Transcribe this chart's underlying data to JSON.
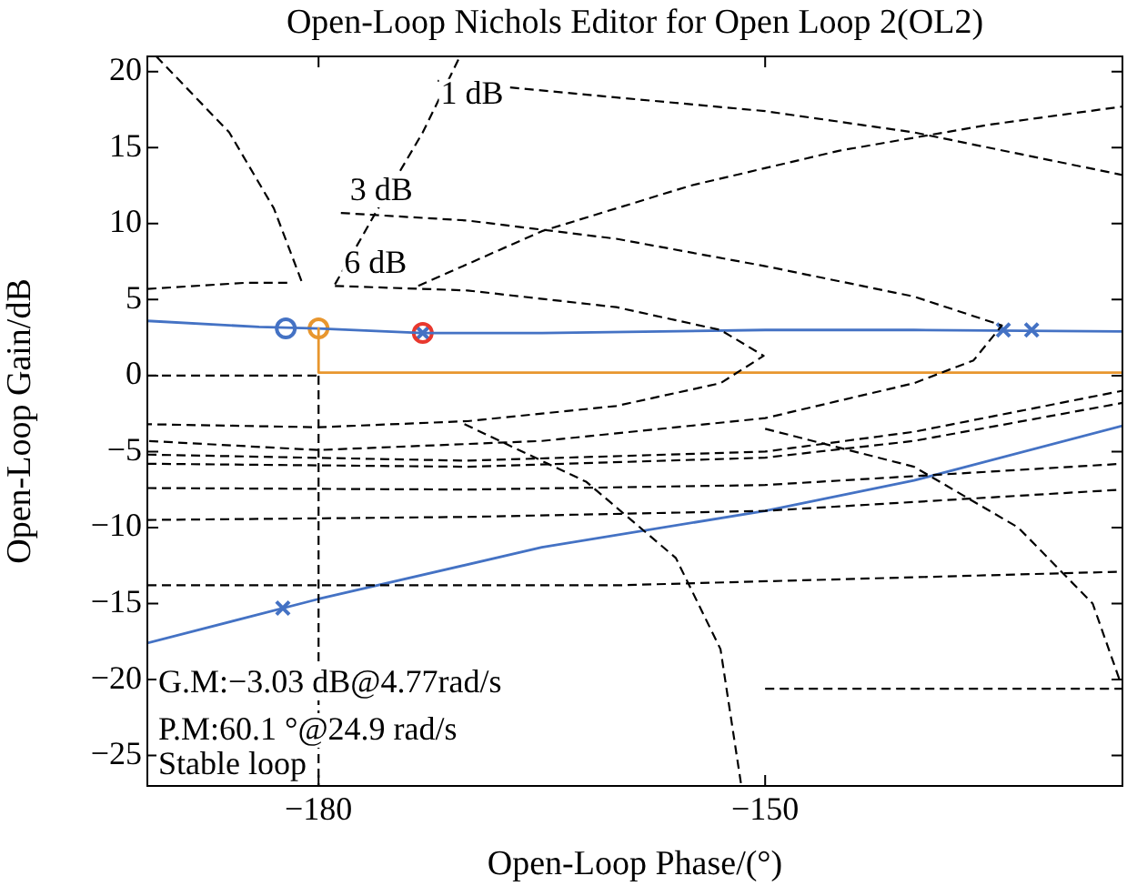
{
  "chart_data": {
    "type": "line",
    "title": "Open-Loop Nichols Editor for Open Loop 2(OL2)",
    "xlabel": "Open-Loop Phase/(°)",
    "ylabel": "Open-Loop Gain/dB",
    "xlim": [
      -191.5,
      -126
    ],
    "ylim": [
      -27,
      21
    ],
    "xticks": [
      -180,
      -150
    ],
    "yticks": [
      -25,
      -20,
      -15,
      -10,
      -5,
      0,
      5,
      10,
      15,
      20
    ],
    "grid": false,
    "legend": false,
    "marker": "none",
    "line_style": "solid",
    "annotations": [
      {
        "text": "1 dB",
        "x": -172.4,
        "y": 17
      },
      {
        "text": "3 dB",
        "x": -178.5,
        "y": 10.7
      },
      {
        "text": "6 dB",
        "x": -178.9,
        "y": 5.9
      },
      "G.M:−3.03 dB@4.77rad/s",
      "P.M:60.1 °@24.9 rad/s",
      "Stable loop"
    ],
    "series": [
      {
        "type": "line",
        "color": "#000000",
        "line_style": "dashed",
        "x": [
          -178.9,
          -170,
          -160,
          -153,
          -150.1,
          -153,
          -160,
          -170,
          -180,
          -191.5
        ],
        "values": [
          5.9,
          5.6,
          4.5,
          3,
          1.3,
          -0.5,
          -2,
          -3,
          -3.4,
          -3.2
        ]
      },
      {
        "type": "line",
        "color": "#000000",
        "line_style": "dashed",
        "x": [
          -178.5,
          -170,
          -160,
          -150,
          -140,
          -134.1,
          -136,
          -140,
          -150,
          -165,
          -180,
          -191.5
        ],
        "values": [
          10.7,
          10.2,
          9,
          7.2,
          5.2,
          3.3,
          1,
          -0.5,
          -2.8,
          -4.3,
          -4.9,
          -4.3
        ]
      },
      {
        "type": "line",
        "color": "#000000",
        "line_style": "dashed",
        "x": [
          -178.9,
          -176,
          -173,
          -170.5
        ],
        "values": [
          6,
          11,
          16,
          21
        ]
      },
      {
        "type": "line",
        "color": "#000000",
        "line_style": "dashed",
        "x": [
          -173.3,
          -165,
          -155,
          -145,
          -135,
          -126
        ],
        "values": [
          5.9,
          9.5,
          12.5,
          14.8,
          16.5,
          17.7
        ]
      },
      {
        "type": "line",
        "color": "#000000",
        "line_style": "dashed",
        "x": [
          -190.9,
          -186,
          -183,
          -181.1
        ],
        "values": [
          21,
          16,
          11,
          6.1
        ]
      },
      {
        "type": "line",
        "color": "#000000",
        "line_style": "dashed",
        "x": [
          -191.5,
          -185,
          -182
        ],
        "values": [
          5.7,
          6.1,
          6.1
        ]
      },
      {
        "type": "line",
        "color": "#000000",
        "line_style": "dashed",
        "x": [
          -172,
          -160,
          -150,
          -140,
          -126
        ],
        "values": [
          19.4,
          18.3,
          17.4,
          16,
          13.2
        ]
      },
      {
        "type": "line",
        "color": "#000000",
        "line_style": "dashed",
        "x": [
          -191.5,
          -170,
          -150,
          -140,
          -126
        ],
        "values": [
          -5.2,
          -5.6,
          -5,
          -3.7,
          -1
        ]
      },
      {
        "type": "line",
        "color": "#000000",
        "line_style": "dashed",
        "x": [
          -191.5,
          -170,
          -150,
          -140,
          -126
        ],
        "values": [
          -5.8,
          -6,
          -5.4,
          -4.3,
          -1.8
        ]
      },
      {
        "type": "line",
        "color": "#000000",
        "line_style": "dashed",
        "x": [
          -191.5,
          -170,
          -150,
          -126
        ],
        "values": [
          -7.4,
          -7.5,
          -7.2,
          -5.8
        ]
      },
      {
        "type": "line",
        "color": "#000000",
        "line_style": "dashed",
        "x": [
          -191.5,
          -170,
          -150,
          -126
        ],
        "values": [
          -9.5,
          -9.3,
          -8.9,
          -7.5
        ]
      },
      {
        "type": "line",
        "color": "#000000",
        "line_style": "dashed",
        "x": [
          -191.5,
          -160,
          -126
        ],
        "values": [
          -13.8,
          -13.8,
          -12.9
        ]
      },
      {
        "type": "line",
        "color": "#000000",
        "line_style": "dashed",
        "x": [
          -150,
          -126
        ],
        "values": [
          -20.6,
          -20.6
        ]
      },
      {
        "type": "line",
        "color": "#000000",
        "line_style": "dashed",
        "x": [
          -170.2,
          -162,
          -156,
          -153,
          -151.6
        ],
        "values": [
          -3.2,
          -7,
          -12,
          -18,
          -27
        ]
      },
      {
        "type": "line",
        "color": "#000000",
        "line_style": "dashed",
        "x": [
          -150,
          -140,
          -133,
          -128,
          -126.2
        ],
        "values": [
          -3.5,
          -6,
          -10,
          -15,
          -20
        ]
      },
      {
        "type": "line",
        "color": "#000000",
        "line_style": "dashed",
        "x": [
          -180,
          -180
        ],
        "values": [
          0,
          -27
        ]
      },
      {
        "type": "line",
        "color": "#000000",
        "line_style": "dashed",
        "x": [
          -191.5,
          -180
        ],
        "values": [
          0,
          0
        ]
      },
      {
        "type": "line",
        "color": "#e8962e",
        "x": [
          -180,
          -180,
          -126
        ],
        "values": [
          3.1,
          0.2,
          0.2
        ]
      },
      {
        "type": "line",
        "color": "#4472c4",
        "x": [
          -191.5,
          -184,
          -180,
          -173,
          -165,
          -150,
          -140,
          -126
        ],
        "values": [
          3.6,
          3.2,
          3.1,
          2.8,
          2.8,
          3,
          3,
          2.9
        ]
      },
      {
        "type": "line",
        "color": "#4472c4",
        "x": [
          -191.5,
          -180,
          -165,
          -150,
          -140,
          -126
        ],
        "values": [
          -17.6,
          -14.7,
          -11.3,
          -8.9,
          -6.9,
          -3.3
        ]
      },
      {
        "type": "scatter",
        "color": "#4472c4",
        "marker": "circle",
        "x": [
          -182.2
        ],
        "values": [
          3.1
        ]
      },
      {
        "type": "scatter",
        "color": "#e8962e",
        "marker": "circle",
        "x": [
          -180
        ],
        "values": [
          3.1
        ]
      },
      {
        "type": "scatter",
        "color": "#e8382e",
        "marker": "circle",
        "x": [
          -173
        ],
        "values": [
          2.8
        ]
      },
      {
        "type": "scatter",
        "color": "#4472c4",
        "marker": "cross",
        "x": [
          -173,
          -134,
          -132.1,
          -182.4
        ],
        "values": [
          2.8,
          3,
          3,
          -15.3
        ]
      }
    ]
  }
}
